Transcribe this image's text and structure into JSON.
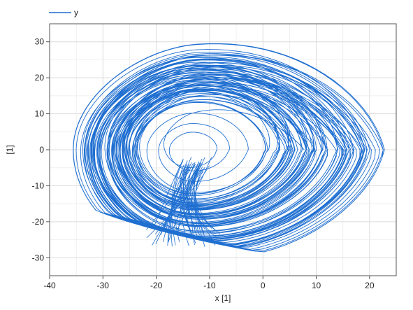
{
  "chart_data": {
    "type": "line",
    "title": "",
    "xlabel": "x [1]",
    "ylabel": "[1]",
    "xlim": [
      -40,
      25
    ],
    "ylim": [
      -35,
      35
    ],
    "x_ticks": [
      -40,
      -30,
      -20,
      -10,
      0,
      10,
      20
    ],
    "y_ticks": [
      -30,
      -20,
      -10,
      0,
      10,
      20,
      30
    ],
    "grid": true,
    "legend": "top-left",
    "series": [
      {
        "name": "y",
        "color": "#1f6fd1",
        "shape": "chaotic-attractor",
        "center": [
          -13.5,
          0
        ],
        "x_range": [
          -35.6,
          22.8
        ],
        "y_range": [
          -30.5,
          29.2
        ]
      }
    ]
  }
}
